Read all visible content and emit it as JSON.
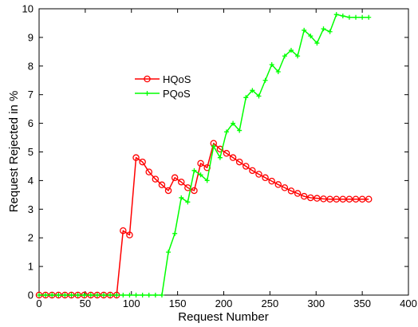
{
  "chart_data": {
    "type": "line",
    "title": "",
    "xlabel": "Request Number",
    "ylabel": "Request Rejected in %",
    "xlim": [
      0,
      400
    ],
    "ylim": [
      0,
      10
    ],
    "xticks": [
      0,
      50,
      100,
      150,
      200,
      250,
      300,
      350,
      400
    ],
    "yticks": [
      0,
      1,
      2,
      3,
      4,
      5,
      6,
      7,
      8,
      9,
      10
    ],
    "grid": false,
    "legend_position": "upper-left-center",
    "series": [
      {
        "name": "HQoS",
        "color": "#ff0000",
        "marker": "circle",
        "x": [
          0,
          7,
          14,
          21,
          28,
          35,
          42,
          49,
          56,
          63,
          70,
          77,
          84,
          91,
          98,
          105,
          112,
          119,
          126,
          133,
          140,
          147,
          154,
          161,
          168,
          175,
          182,
          189,
          196,
          203,
          210,
          217,
          224,
          231,
          238,
          245,
          252,
          259,
          266,
          273,
          280,
          287,
          294,
          301,
          308,
          315,
          322,
          329,
          336,
          343,
          350,
          357
        ],
        "y": [
          0,
          0,
          0,
          0,
          0,
          0,
          0,
          0,
          0,
          0,
          0,
          0,
          0,
          2.25,
          2.1,
          4.8,
          4.65,
          4.3,
          4.05,
          3.85,
          3.65,
          4.1,
          3.95,
          3.75,
          3.65,
          4.6,
          4.45,
          5.3,
          5.1,
          4.95,
          4.8,
          4.65,
          4.5,
          4.35,
          4.22,
          4.1,
          3.98,
          3.86,
          3.75,
          3.64,
          3.55,
          3.45,
          3.4,
          3.38,
          3.36,
          3.35,
          3.35,
          3.35,
          3.35,
          3.35,
          3.35,
          3.35
        ]
      },
      {
        "name": "PQoS",
        "color": "#00ff00",
        "marker": "plus",
        "x": [
          0,
          7,
          14,
          21,
          28,
          35,
          42,
          49,
          56,
          63,
          70,
          77,
          84,
          91,
          98,
          105,
          112,
          119,
          126,
          133,
          140,
          147,
          154,
          161,
          168,
          175,
          182,
          189,
          196,
          203,
          210,
          217,
          224,
          231,
          238,
          245,
          252,
          259,
          266,
          273,
          280,
          287,
          294,
          301,
          308,
          315,
          322,
          329,
          336,
          343,
          350,
          357
        ],
        "y": [
          0,
          0,
          0,
          0,
          0,
          0,
          0,
          0,
          0,
          0,
          0,
          0,
          0,
          0,
          0,
          0,
          0,
          0,
          0,
          0,
          1.5,
          2.15,
          3.4,
          3.25,
          4.35,
          4.2,
          4.0,
          5.2,
          4.8,
          5.7,
          6.0,
          5.75,
          6.9,
          7.15,
          6.95,
          7.5,
          8.05,
          7.8,
          8.35,
          8.55,
          8.35,
          9.25,
          9.05,
          8.8,
          9.3,
          9.2,
          9.8,
          9.75,
          9.7,
          9.7,
          9.7,
          9.7
        ]
      }
    ]
  }
}
